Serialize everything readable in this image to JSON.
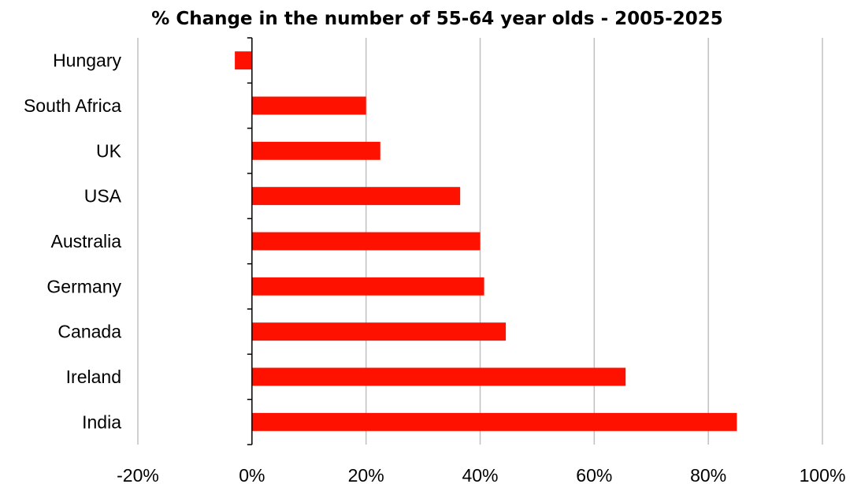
{
  "chart_data": {
    "type": "bar",
    "orientation": "horizontal",
    "title": "% Change in the number of 55-64 year olds - 2005-2025",
    "categories": [
      "Hungary",
      "South Africa",
      "UK",
      "USA",
      "Australia",
      "Germany",
      "Canada",
      "Ireland",
      "India"
    ],
    "values": [
      -3,
      20,
      22.5,
      36.5,
      40,
      40.7,
      44.5,
      65.5,
      85
    ],
    "x_ticks": [
      "-20%",
      "0%",
      "20%",
      "40%",
      "60%",
      "80%",
      "100%"
    ],
    "xlim": [
      -20,
      100
    ],
    "grid": true,
    "bar_color": "#ff1100",
    "legend": "none"
  }
}
